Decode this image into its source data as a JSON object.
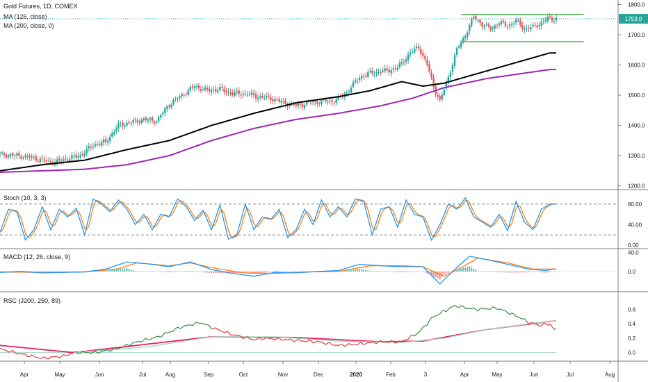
{
  "chart_data": {
    "type": "line",
    "title": "Gold Futures, 1D, COMEX",
    "x_axis_labels": [
      "Apr",
      "May",
      "Jun",
      "Jul",
      "Aug",
      "Sep",
      "Oct",
      "Nov",
      "Dec",
      "2020",
      "Feb",
      "3",
      "Apr",
      "May",
      "Jun",
      "Jul",
      "Aug"
    ],
    "last_price_label": "1753.0",
    "colors": {
      "up": "#26a69a",
      "down": "#ef5350",
      "ma126": "#000000",
      "ma200": "#9c27b0",
      "channel": "#4caf50",
      "stoch_k": "#2196f3",
      "stoch_d": "#ff7f0e",
      "macd": "#2196f3",
      "signal": "#ff7f0e",
      "rsc_main_up": "#388e3c",
      "rsc_main_down": "#e53935",
      "rsc_ma_light": "#a5d6c7",
      "rsc_ma_red": "#e91e63",
      "price_line": "#26a69a"
    },
    "panes": [
      {
        "id": "price",
        "labels": [
          "Gold Futures, 1D, COMEX",
          "MA (126, close)",
          "MA (200, close, 0)"
        ],
        "y_ticks": [
          "1800.0",
          "1700.0",
          "1600.0",
          "1500.0",
          "1400.0",
          "1300.0",
          "1200.0"
        ],
        "ylim": [
          1190,
          1815
        ],
        "price_anchors": [
          [
            0,
            1305
          ],
          [
            8,
            1300
          ],
          [
            14,
            1295
          ],
          [
            20,
            1285
          ],
          [
            26,
            1278
          ],
          [
            32,
            1290
          ],
          [
            38,
            1300
          ],
          [
            44,
            1335
          ],
          [
            50,
            1345
          ],
          [
            56,
            1400
          ],
          [
            62,
            1410
          ],
          [
            68,
            1420
          ],
          [
            74,
            1415
          ],
          [
            80,
            1470
          ],
          [
            86,
            1500
          ],
          [
            92,
            1530
          ],
          [
            98,
            1515
          ],
          [
            104,
            1520
          ],
          [
            110,
            1505
          ],
          [
            116,
            1505
          ],
          [
            122,
            1495
          ],
          [
            128,
            1490
          ],
          [
            134,
            1475
          ],
          [
            140,
            1465
          ],
          [
            146,
            1475
          ],
          [
            152,
            1480
          ],
          [
            158,
            1480
          ],
          [
            164,
            1510
          ],
          [
            170,
            1560
          ],
          [
            176,
            1575
          ],
          [
            182,
            1580
          ],
          [
            188,
            1590
          ],
          [
            194,
            1640
          ],
          [
            198,
            1660
          ],
          [
            202,
            1600
          ],
          [
            205,
            1530
          ],
          [
            208,
            1480
          ],
          [
            212,
            1560
          ],
          [
            216,
            1650
          ],
          [
            220,
            1700
          ],
          [
            224,
            1760
          ],
          [
            228,
            1735
          ],
          [
            232,
            1720
          ],
          [
            236,
            1740
          ],
          [
            240,
            1730
          ],
          [
            244,
            1745
          ],
          [
            248,
            1720
          ],
          [
            252,
            1725
          ],
          [
            256,
            1740
          ],
          [
            259,
            1753
          ]
        ],
        "ma126_anchors": [
          [
            0,
            1250
          ],
          [
            20,
            1270
          ],
          [
            40,
            1285
          ],
          [
            60,
            1320
          ],
          [
            80,
            1350
          ],
          [
            100,
            1400
          ],
          [
            120,
            1440
          ],
          [
            140,
            1475
          ],
          [
            160,
            1495
          ],
          [
            175,
            1515
          ],
          [
            190,
            1545
          ],
          [
            200,
            1530
          ],
          [
            210,
            1540
          ],
          [
            230,
            1580
          ],
          [
            250,
            1620
          ],
          [
            260,
            1640
          ]
        ],
        "ma200_anchors": [
          [
            0,
            1245
          ],
          [
            40,
            1255
          ],
          [
            60,
            1270
          ],
          [
            80,
            1300
          ],
          [
            100,
            1350
          ],
          [
            120,
            1390
          ],
          [
            140,
            1420
          ],
          [
            160,
            1440
          ],
          [
            180,
            1465
          ],
          [
            195,
            1490
          ],
          [
            210,
            1525
          ],
          [
            230,
            1555
          ],
          [
            250,
            1575
          ],
          [
            260,
            1585
          ]
        ],
        "channel": {
          "x_start": 218,
          "x_end": 276,
          "upper": 1767,
          "lower": 1677
        }
      },
      {
        "id": "stoch",
        "label": "Stoch (10, 3, 3)",
        "y_ticks": [
          "80.00",
          "40.00",
          "0.00"
        ],
        "ylim": [
          0,
          100
        ],
        "bands": [
          80,
          20
        ],
        "k_anchors": [
          [
            0,
            25
          ],
          [
            4,
            70
          ],
          [
            8,
            65
          ],
          [
            12,
            10
          ],
          [
            16,
            30
          ],
          [
            20,
            75
          ],
          [
            24,
            30
          ],
          [
            28,
            70
          ],
          [
            32,
            55
          ],
          [
            36,
            72
          ],
          [
            40,
            20
          ],
          [
            44,
            90
          ],
          [
            48,
            80
          ],
          [
            52,
            65
          ],
          [
            56,
            88
          ],
          [
            60,
            70
          ],
          [
            64,
            40
          ],
          [
            68,
            60
          ],
          [
            72,
            30
          ],
          [
            76,
            60
          ],
          [
            80,
            55
          ],
          [
            84,
            90
          ],
          [
            88,
            75
          ],
          [
            92,
            48
          ],
          [
            96,
            68
          ],
          [
            100,
            30
          ],
          [
            104,
            78
          ],
          [
            108,
            12
          ],
          [
            112,
            20
          ],
          [
            116,
            80
          ],
          [
            120,
            30
          ],
          [
            124,
            55
          ],
          [
            128,
            50
          ],
          [
            132,
            70
          ],
          [
            136,
            15
          ],
          [
            140,
            30
          ],
          [
            144,
            70
          ],
          [
            148,
            40
          ],
          [
            152,
            88
          ],
          [
            156,
            55
          ],
          [
            160,
            75
          ],
          [
            164,
            55
          ],
          [
            168,
            90
          ],
          [
            172,
            85
          ],
          [
            176,
            20
          ],
          [
            180,
            70
          ],
          [
            184,
            75
          ],
          [
            188,
            35
          ],
          [
            192,
            88
          ],
          [
            196,
            60
          ],
          [
            200,
            55
          ],
          [
            204,
            10
          ],
          [
            208,
            40
          ],
          [
            212,
            80
          ],
          [
            216,
            70
          ],
          [
            220,
            92
          ],
          [
            224,
            55
          ],
          [
            228,
            45
          ],
          [
            232,
            35
          ],
          [
            236,
            60
          ],
          [
            240,
            28
          ],
          [
            244,
            85
          ],
          [
            248,
            45
          ],
          [
            252,
            30
          ],
          [
            256,
            70
          ],
          [
            260,
            80
          ]
        ]
      },
      {
        "id": "macd",
        "label": "MACD (12, 26, close, 9)",
        "y_ticks": [
          "40.0",
          "0.0"
        ],
        "ylim": [
          -38,
          42
        ],
        "macd_anchors": [
          [
            0,
            -2
          ],
          [
            10,
            0
          ],
          [
            20,
            -3
          ],
          [
            30,
            -2
          ],
          [
            40,
            -1
          ],
          [
            50,
            5
          ],
          [
            60,
            20
          ],
          [
            70,
            16
          ],
          [
            80,
            10
          ],
          [
            90,
            20
          ],
          [
            100,
            4
          ],
          [
            110,
            -4
          ],
          [
            120,
            -10
          ],
          [
            130,
            -2
          ],
          [
            140,
            -3
          ],
          [
            150,
            0
          ],
          [
            160,
            2
          ],
          [
            170,
            15
          ],
          [
            180,
            12
          ],
          [
            190,
            10
          ],
          [
            200,
            10
          ],
          [
            208,
            -26
          ],
          [
            214,
            0
          ],
          [
            222,
            32
          ],
          [
            230,
            25
          ],
          [
            240,
            15
          ],
          [
            250,
            5
          ],
          [
            258,
            2
          ],
          [
            262,
            5
          ]
        ],
        "signal_anchors": [
          [
            0,
            -1
          ],
          [
            20,
            -2
          ],
          [
            40,
            -1
          ],
          [
            55,
            5
          ],
          [
            65,
            18
          ],
          [
            80,
            12
          ],
          [
            90,
            18
          ],
          [
            100,
            8
          ],
          [
            115,
            -3
          ],
          [
            130,
            -4
          ],
          [
            145,
            -1
          ],
          [
            160,
            0
          ],
          [
            175,
            12
          ],
          [
            190,
            12
          ],
          [
            200,
            10
          ],
          [
            210,
            -10
          ],
          [
            218,
            8
          ],
          [
            226,
            28
          ],
          [
            240,
            18
          ],
          [
            252,
            5
          ],
          [
            262,
            5
          ]
        ]
      },
      {
        "id": "rsc",
        "label": "RSC (J200, 250, 89)",
        "y_ticks": [
          "0.6",
          "0.4",
          "0.2",
          "0.0"
        ],
        "ylim": [
          -0.1,
          0.75
        ],
        "main_anchors": [
          [
            0,
            0.05
          ],
          [
            10,
            -0.02
          ],
          [
            20,
            -0.08
          ],
          [
            30,
            -0.05
          ],
          [
            35,
            0.0
          ],
          [
            45,
            0.0
          ],
          [
            55,
            0.05
          ],
          [
            65,
            0.15
          ],
          [
            75,
            0.22
          ],
          [
            85,
            0.35
          ],
          [
            95,
            0.42
          ],
          [
            100,
            0.35
          ],
          [
            110,
            0.25
          ],
          [
            120,
            0.18
          ],
          [
            125,
            0.2
          ],
          [
            135,
            0.18
          ],
          [
            150,
            0.15
          ],
          [
            160,
            0.1
          ],
          [
            170,
            0.12
          ],
          [
            180,
            0.15
          ],
          [
            190,
            0.15
          ],
          [
            198,
            0.28
          ],
          [
            205,
            0.5
          ],
          [
            215,
            0.65
          ],
          [
            225,
            0.6
          ],
          [
            235,
            0.62
          ],
          [
            245,
            0.5
          ],
          [
            250,
            0.42
          ],
          [
            255,
            0.38
          ],
          [
            260,
            0.4
          ],
          [
            262,
            0.32
          ]
        ],
        "main_green_ranges": [
          [
            35,
            100
          ],
          [
            195,
            248
          ]
        ],
        "ma_light_anchors": [
          [
            35,
            0.0
          ],
          [
            70,
            0.08
          ],
          [
            100,
            0.22
          ],
          [
            130,
            0.22
          ],
          [
            160,
            0.16
          ],
          [
            190,
            0.14
          ],
          [
            210,
            0.2
          ],
          [
            230,
            0.32
          ],
          [
            250,
            0.4
          ],
          [
            262,
            0.44
          ]
        ],
        "ma_red_anchors": [
          [
            0,
            0.1
          ],
          [
            35,
            0.0
          ],
          [
            100,
            0.22
          ],
          [
            140,
            0.21
          ],
          [
            180,
            0.15
          ],
          [
            200,
            0.16
          ],
          [
            230,
            0.32
          ],
          [
            262,
            0.44
          ]
        ]
      }
    ]
  }
}
